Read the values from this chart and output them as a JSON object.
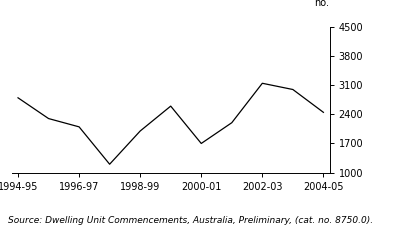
{
  "x_labels": [
    "1994-95",
    "1996-97",
    "1998-99",
    "2000-01",
    "2002-03",
    "2004-05"
  ],
  "x_tick_positions": [
    0,
    2,
    4,
    6,
    8,
    10
  ],
  "y_values": [
    2800,
    2300,
    2100,
    1200,
    2000,
    2600,
    1700,
    2200,
    3150,
    3000,
    2450
  ],
  "x_data": [
    0,
    1,
    2,
    3,
    4,
    5,
    6,
    7,
    8,
    9,
    10
  ],
  "yticks": [
    1000,
    1700,
    2400,
    3100,
    3800,
    4500
  ],
  "ylim": [
    1000,
    4500
  ],
  "xlim": [
    -0.2,
    10.2
  ],
  "ylabel_text": "no.",
  "source_text": "Source: Dwelling Unit Commencements, Australia, Preliminary, (cat. no. 8750.0).",
  "line_color": "#000000",
  "background_color": "#ffffff",
  "tick_label_fontsize": 7,
  "source_fontsize": 6.5
}
